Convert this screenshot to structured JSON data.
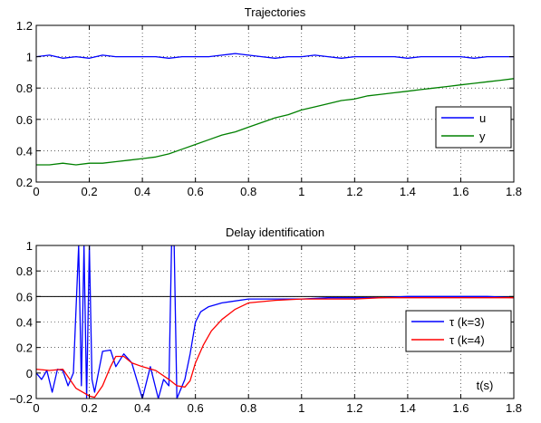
{
  "chart_data": [
    {
      "type": "line",
      "title": "Trajectories",
      "xlabel": "",
      "ylabel": "",
      "xlim": [
        0,
        1.8
      ],
      "ylim": [
        0.2,
        1.2
      ],
      "xticks": [
        0,
        0.2,
        0.4,
        0.6,
        0.8,
        1,
        1.2,
        1.4,
        1.6,
        1.8
      ],
      "xtick_labels": [
        "0",
        "0.2",
        "0.4",
        "0.6",
        "0.8",
        "1",
        "1.2",
        "1.4",
        "1.6",
        "1.8"
      ],
      "yticks": [
        0.2,
        0.4,
        0.6,
        0.8,
        1,
        1.2
      ],
      "ytick_labels": [
        "0.2",
        "0.4",
        "0.6",
        "0.8",
        "1",
        "1.2"
      ],
      "grid": true,
      "legend_position": "right",
      "series": [
        {
          "name": "u",
          "color": "#0000ff",
          "x": [
            0,
            0.05,
            0.1,
            0.15,
            0.2,
            0.25,
            0.3,
            0.35,
            0.4,
            0.45,
            0.5,
            0.55,
            0.6,
            0.65,
            0.7,
            0.75,
            0.8,
            0.85,
            0.9,
            0.95,
            1,
            1.05,
            1.1,
            1.15,
            1.2,
            1.25,
            1.3,
            1.35,
            1.4,
            1.45,
            1.5,
            1.55,
            1.6,
            1.65,
            1.7,
            1.75,
            1.8
          ],
          "y": [
            1.0,
            1.01,
            0.99,
            1.0,
            0.99,
            1.01,
            1.0,
            1.0,
            1.0,
            1.0,
            0.99,
            1.0,
            1.0,
            1.0,
            1.01,
            1.02,
            1.01,
            1.0,
            0.99,
            1.0,
            1.0,
            1.01,
            1.0,
            0.99,
            1.0,
            1.0,
            1.0,
            1.0,
            0.99,
            1.0,
            1.0,
            1.0,
            1.0,
            0.99,
            1.0,
            1.0,
            1.0
          ]
        },
        {
          "name": "y",
          "color": "#008000",
          "x": [
            0,
            0.05,
            0.1,
            0.15,
            0.2,
            0.25,
            0.3,
            0.35,
            0.4,
            0.45,
            0.5,
            0.55,
            0.6,
            0.65,
            0.7,
            0.75,
            0.8,
            0.85,
            0.9,
            0.95,
            1,
            1.05,
            1.1,
            1.15,
            1.2,
            1.25,
            1.3,
            1.35,
            1.4,
            1.45,
            1.5,
            1.55,
            1.6,
            1.65,
            1.7,
            1.75,
            1.8
          ],
          "y": [
            0.31,
            0.31,
            0.32,
            0.31,
            0.32,
            0.32,
            0.33,
            0.34,
            0.35,
            0.36,
            0.38,
            0.41,
            0.44,
            0.47,
            0.5,
            0.52,
            0.55,
            0.58,
            0.61,
            0.63,
            0.66,
            0.68,
            0.7,
            0.72,
            0.73,
            0.75,
            0.76,
            0.77,
            0.78,
            0.79,
            0.8,
            0.81,
            0.82,
            0.83,
            0.84,
            0.85,
            0.86
          ]
        }
      ]
    },
    {
      "type": "line",
      "title": "Delay identification",
      "xlabel": "t(s)",
      "ylabel": "",
      "xlim": [
        0,
        1.8
      ],
      "ylim": [
        -0.2,
        1
      ],
      "xticks": [
        0,
        0.2,
        0.4,
        0.6,
        0.8,
        1,
        1.2,
        1.4,
        1.6,
        1.8
      ],
      "xtick_labels": [
        "0",
        "0.2",
        "0.4",
        "0.6",
        "0.8",
        "1",
        "1.2",
        "1.4",
        "1.6",
        "1.8"
      ],
      "yticks": [
        -0.2,
        0,
        0.2,
        0.4,
        0.6,
        0.8,
        1
      ],
      "ytick_labels": [
        "−0.2",
        "0",
        "0.2",
        "0.4",
        "0.6",
        "0.8",
        "1"
      ],
      "grid": true,
      "legend_position": "right",
      "reference_line": {
        "y": 0.6,
        "color": "#000000"
      },
      "series": [
        {
          "name": "τ (k=3)",
          "color": "#0000ff",
          "x": [
            0,
            0.02,
            0.04,
            0.06,
            0.08,
            0.1,
            0.12,
            0.14,
            0.16,
            0.17,
            0.18,
            0.19,
            0.2,
            0.21,
            0.22,
            0.25,
            0.28,
            0.3,
            0.33,
            0.36,
            0.4,
            0.43,
            0.46,
            0.48,
            0.5,
            0.51,
            0.52,
            0.53,
            0.54,
            0.56,
            0.58,
            0.6,
            0.62,
            0.65,
            0.7,
            0.8,
            0.9,
            1,
            1.1,
            1.2,
            1.3,
            1.4,
            1.5,
            1.6,
            1.7,
            1.8
          ],
          "y": [
            0,
            -0.05,
            0.02,
            -0.15,
            0.03,
            0.02,
            -0.1,
            0.0,
            1.0,
            -0.1,
            1.0,
            -0.2,
            1.0,
            -0.05,
            -0.15,
            0.17,
            0.18,
            0.05,
            0.15,
            0.08,
            -0.2,
            0.05,
            -0.2,
            -0.05,
            -0.1,
            1.0,
            1.0,
            -0.2,
            -0.15,
            -0.05,
            0.15,
            0.4,
            0.48,
            0.52,
            0.55,
            0.58,
            0.58,
            0.58,
            0.59,
            0.59,
            0.59,
            0.6,
            0.6,
            0.6,
            0.6,
            0.59
          ]
        },
        {
          "name": "τ (k=4)",
          "color": "#ff0000",
          "x": [
            0,
            0.05,
            0.1,
            0.15,
            0.2,
            0.22,
            0.25,
            0.28,
            0.3,
            0.33,
            0.36,
            0.4,
            0.45,
            0.5,
            0.53,
            0.56,
            0.58,
            0.6,
            0.63,
            0.66,
            0.7,
            0.75,
            0.8,
            0.9,
            1,
            1.1,
            1.2,
            1.3,
            1.4,
            1.5,
            1.6,
            1.7,
            1.8
          ],
          "y": [
            0.03,
            0.02,
            0.03,
            -0.12,
            -0.18,
            -0.19,
            -0.1,
            0.05,
            0.13,
            0.13,
            0.08,
            0.05,
            0.02,
            -0.05,
            -0.1,
            -0.11,
            -0.06,
            0.08,
            0.22,
            0.33,
            0.42,
            0.5,
            0.55,
            0.57,
            0.58,
            0.58,
            0.58,
            0.59,
            0.59,
            0.59,
            0.59,
            0.59,
            0.59
          ]
        }
      ]
    }
  ]
}
